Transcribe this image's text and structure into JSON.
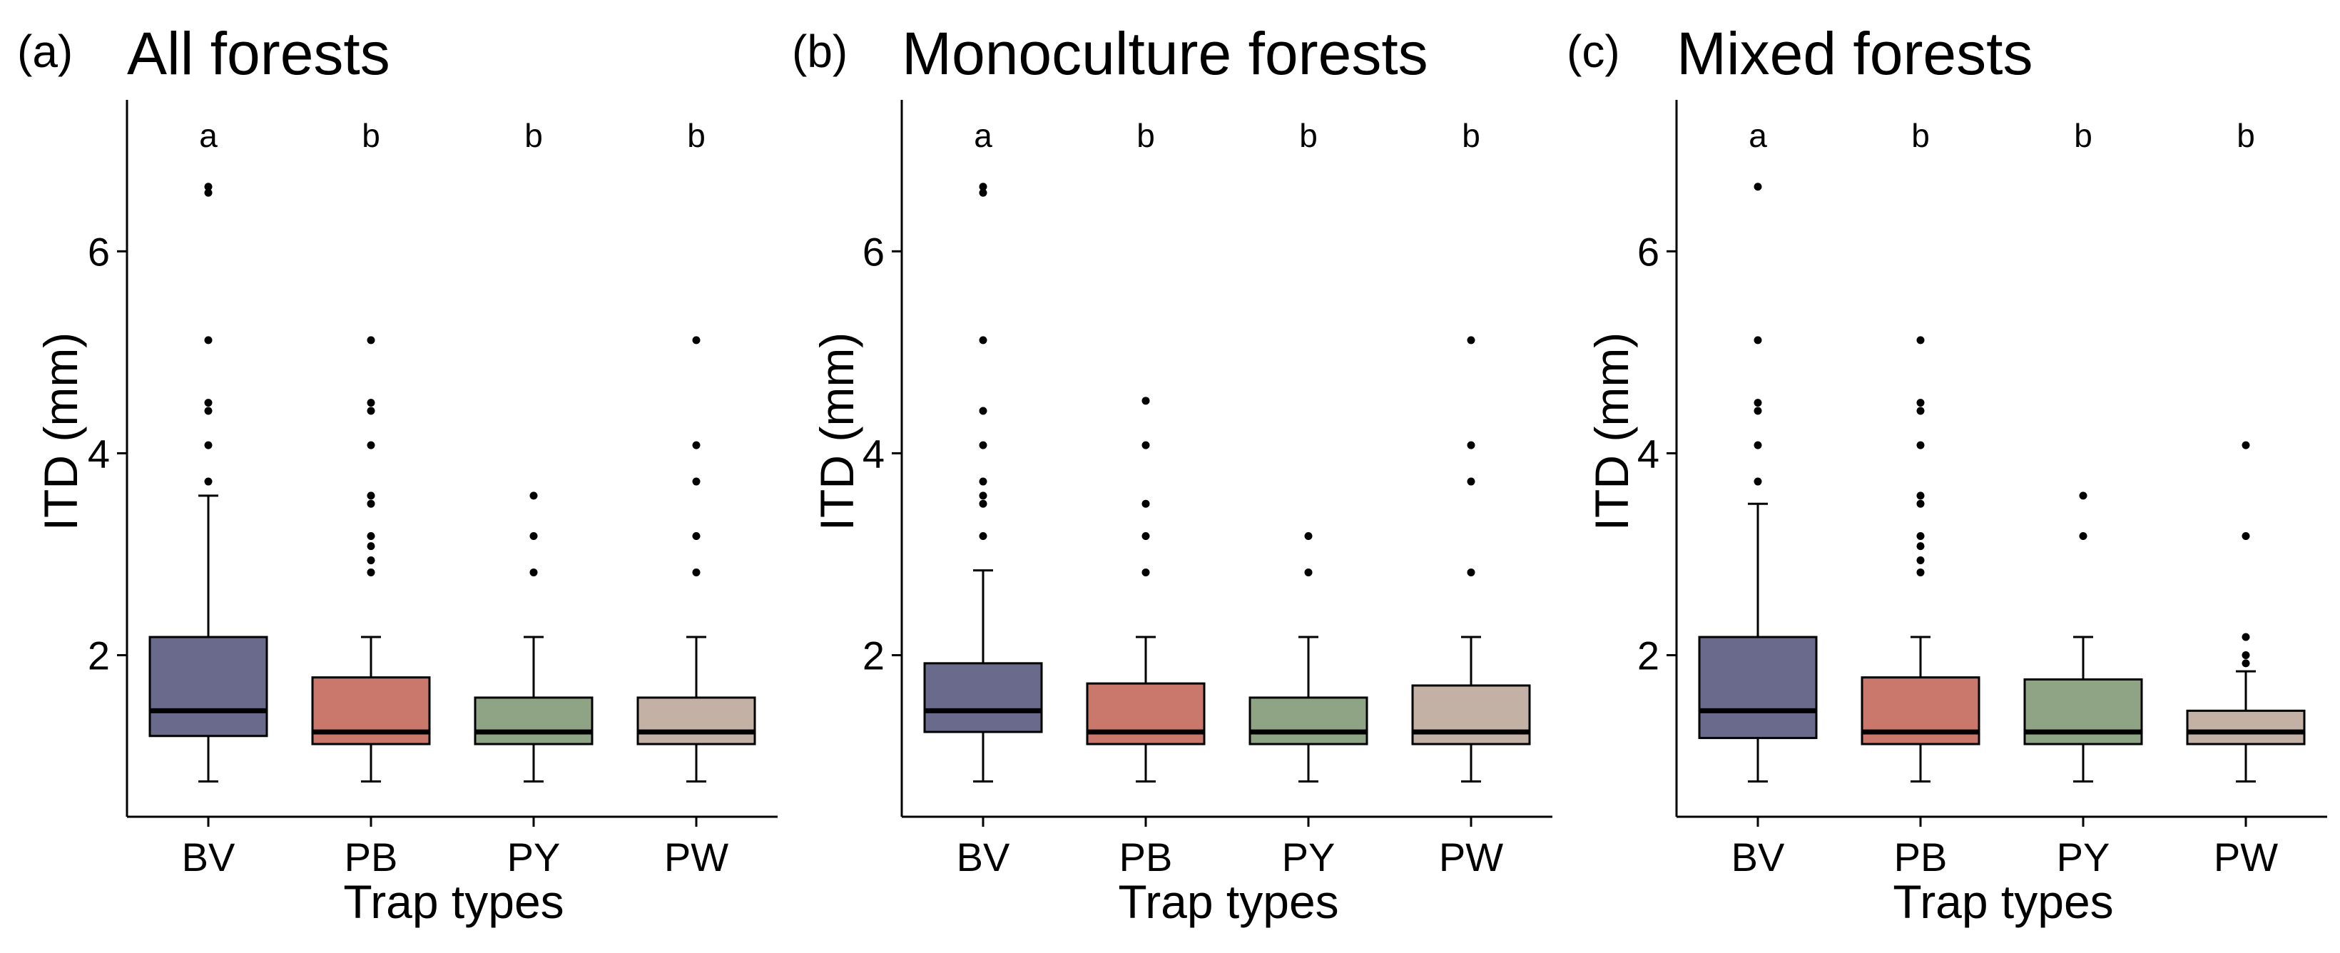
{
  "chart_data": [
    {
      "type": "box",
      "panel_label": "(a)",
      "title": "All forests",
      "xlabel": "Trap types",
      "ylabel": "ITD (mm)",
      "ylim": [
        0.4,
        7.5
      ],
      "yticks": [
        2,
        4,
        6
      ],
      "ytick_labels": [
        "2",
        "4",
        "6"
      ],
      "grid": false,
      "categories": [
        "BV",
        "PB",
        "PY",
        "PW"
      ],
      "colors": [
        "#696a8c",
        "#c9786b",
        "#8fa385",
        "#c4b1a5"
      ],
      "significance": [
        "a",
        "b",
        "b",
        "b"
      ],
      "boxes": [
        {
          "min": 0.75,
          "q1": 1.2,
          "median": 1.45,
          "q3": 2.18,
          "max": 3.58,
          "outliers": [
            3.72,
            4.08,
            4.42,
            4.5,
            5.12,
            6.58,
            6.64
          ]
        },
        {
          "min": 0.75,
          "q1": 1.12,
          "median": 1.24,
          "q3": 1.78,
          "max": 2.18,
          "outliers": [
            2.82,
            2.94,
            3.08,
            3.18,
            3.5,
            3.58,
            4.08,
            4.42,
            4.5,
            5.12
          ]
        },
        {
          "min": 0.75,
          "q1": 1.12,
          "median": 1.24,
          "q3": 1.58,
          "max": 2.18,
          "outliers": [
            2.82,
            3.18,
            3.58
          ]
        },
        {
          "min": 0.75,
          "q1": 1.12,
          "median": 1.24,
          "q3": 1.58,
          "max": 2.18,
          "outliers": [
            2.82,
            3.18,
            3.72,
            4.08,
            5.12
          ]
        }
      ]
    },
    {
      "type": "box",
      "panel_label": "(b)",
      "title": "Monoculture forests",
      "xlabel": "Trap types",
      "ylabel": "ITD (mm)",
      "ylim": [
        0.4,
        7.5
      ],
      "yticks": [
        2,
        4,
        6
      ],
      "ytick_labels": [
        "2",
        "4",
        "6"
      ],
      "grid": false,
      "categories": [
        "BV",
        "PB",
        "PY",
        "PW"
      ],
      "colors": [
        "#696a8c",
        "#c9786b",
        "#8fa385",
        "#c4b1a5"
      ],
      "significance": [
        "a",
        "b",
        "b",
        "b"
      ],
      "boxes": [
        {
          "min": 0.75,
          "q1": 1.24,
          "median": 1.45,
          "q3": 1.92,
          "max": 2.84,
          "outliers": [
            3.18,
            3.5,
            3.58,
            3.72,
            4.08,
            4.42,
            5.12,
            6.58,
            6.64
          ]
        },
        {
          "min": 0.75,
          "q1": 1.12,
          "median": 1.24,
          "q3": 1.72,
          "max": 2.18,
          "outliers": [
            2.82,
            3.18,
            3.5,
            4.08,
            4.52
          ]
        },
        {
          "min": 0.75,
          "q1": 1.12,
          "median": 1.24,
          "q3": 1.58,
          "max": 2.18,
          "outliers": [
            2.82,
            3.18
          ]
        },
        {
          "min": 0.75,
          "q1": 1.12,
          "median": 1.24,
          "q3": 1.7,
          "max": 2.18,
          "outliers": [
            2.82,
            3.72,
            4.08,
            5.12
          ]
        }
      ]
    },
    {
      "type": "box",
      "panel_label": "(c)",
      "title": "Mixed forests",
      "xlabel": "Trap types",
      "ylabel": "ITD (mm)",
      "ylim": [
        0.4,
        7.5
      ],
      "yticks": [
        2,
        4,
        6
      ],
      "ytick_labels": [
        "2",
        "4",
        "6"
      ],
      "grid": false,
      "categories": [
        "BV",
        "PB",
        "PY",
        "PW"
      ],
      "colors": [
        "#696a8c",
        "#c9786b",
        "#8fa385",
        "#c4b1a5"
      ],
      "significance": [
        "a",
        "b",
        "b",
        "b"
      ],
      "boxes": [
        {
          "min": 0.75,
          "q1": 1.18,
          "median": 1.45,
          "q3": 2.18,
          "max": 3.5,
          "outliers": [
            3.72,
            4.08,
            4.42,
            4.5,
            5.12,
            6.64
          ]
        },
        {
          "min": 0.75,
          "q1": 1.12,
          "median": 1.24,
          "q3": 1.78,
          "max": 2.18,
          "outliers": [
            2.82,
            2.94,
            3.08,
            3.18,
            3.5,
            3.58,
            4.08,
            4.42,
            4.5,
            5.12
          ]
        },
        {
          "min": 0.75,
          "q1": 1.12,
          "median": 1.24,
          "q3": 1.76,
          "max": 2.18,
          "outliers": [
            3.18,
            3.58
          ]
        },
        {
          "min": 0.75,
          "q1": 1.12,
          "median": 1.24,
          "q3": 1.45,
          "max": 1.84,
          "outliers": [
            1.92,
            2.0,
            2.18,
            3.18,
            4.08
          ]
        }
      ]
    }
  ]
}
